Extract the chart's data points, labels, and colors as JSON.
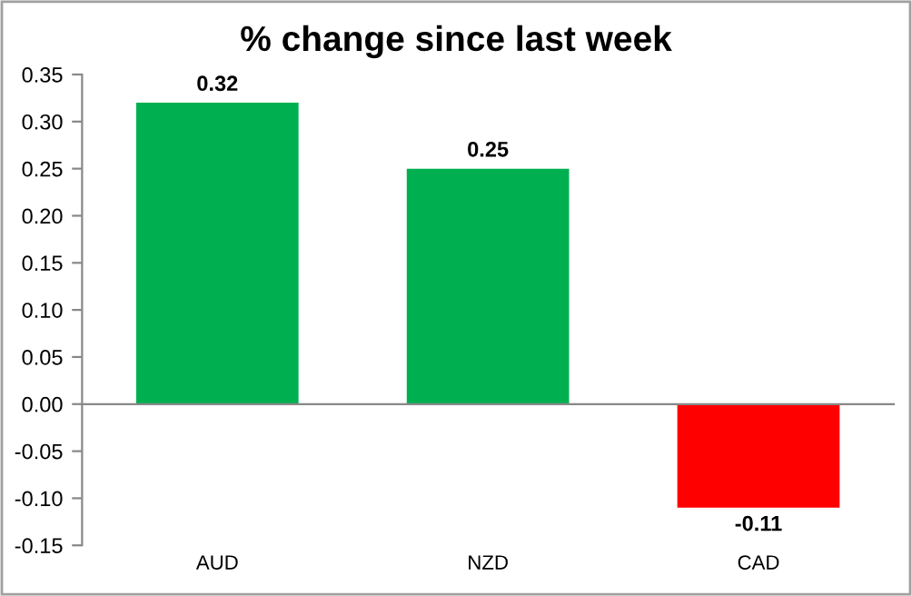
{
  "chart_data": {
    "type": "bar",
    "title": "% change since last week",
    "categories": [
      "AUD",
      "NZD",
      "CAD"
    ],
    "values": [
      0.32,
      0.25,
      -0.11
    ],
    "colors": [
      "#00b050",
      "#00b050",
      "#ff0000"
    ],
    "ylim": [
      -0.15,
      0.35
    ],
    "yticks": [
      {
        "value": -0.15,
        "label": "-0.15"
      },
      {
        "value": -0.1,
        "label": "-0.10"
      },
      {
        "value": -0.05,
        "label": "-0.05"
      },
      {
        "value": 0,
        "label": "0.00"
      },
      {
        "value": 0.05,
        "label": "0.05"
      },
      {
        "value": 0.1,
        "label": "0.10"
      },
      {
        "value": 0.15,
        "label": "0.15"
      },
      {
        "value": 0.2,
        "label": "0.20"
      },
      {
        "value": 0.25,
        "label": "0.25"
      },
      {
        "value": 0.3,
        "label": "0.30"
      },
      {
        "value": 0.35,
        "label": "0.35"
      }
    ],
    "data_labels": true,
    "legend": false
  }
}
